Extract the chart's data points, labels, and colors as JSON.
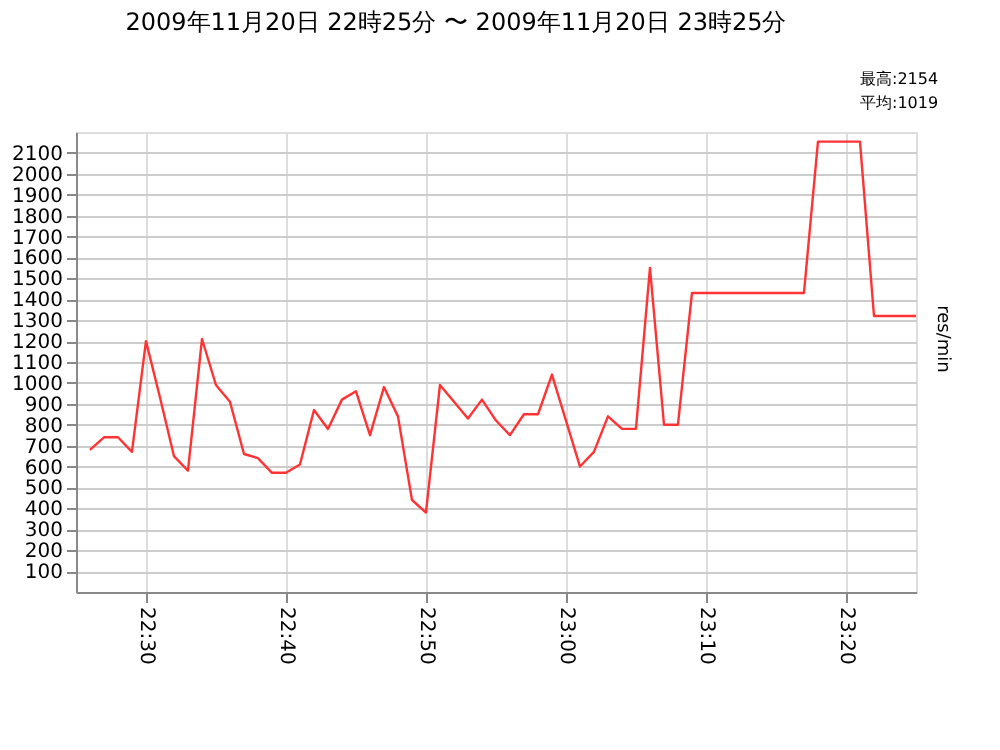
{
  "chart_data": {
    "type": "line",
    "title": "2009年11月20日 22時25分 〜 2009年11月20日 23時25分",
    "ylabel": "res/min",
    "annotations": [
      "最高:2154",
      "平均:1019"
    ],
    "x": [
      22.4333,
      22.45,
      22.4667,
      22.4833,
      22.5,
      22.5167,
      22.5333,
      22.55,
      22.5667,
      22.5833,
      22.6,
      22.6167,
      22.6333,
      22.65,
      22.6667,
      22.6833,
      22.7,
      22.7167,
      22.7333,
      22.75,
      22.7667,
      22.7833,
      22.8,
      22.8167,
      22.8333,
      22.85,
      22.8667,
      22.8833,
      22.9,
      22.9167,
      22.9333,
      22.95,
      22.9667,
      22.9833,
      23,
      23.0167,
      23.0333,
      23.05,
      23.0667,
      23.0833,
      23.1,
      23.1167,
      23.1333,
      23.15,
      23.2833,
      23.3,
      23.35,
      23.3667,
      23.4167
    ],
    "series": [
      {
        "color": "#ff3333",
        "values": [
          680,
          740,
          740,
          670,
          1200,
          930,
          650,
          580,
          1210,
          990,
          910,
          660,
          640,
          570,
          570,
          610,
          870,
          780,
          920,
          960,
          750,
          980,
          840,
          440,
          380,
          990,
          910,
          830,
          920,
          820,
          750,
          850,
          850,
          1040,
          820,
          600,
          670,
          840,
          780,
          780,
          1550,
          800,
          800,
          1430,
          1430,
          2154,
          2154,
          1320,
          1320
        ]
      }
    ],
    "xlim": [
      22.4167,
      23.4167
    ],
    "xticks": [
      {
        "value": 22.5,
        "label": "22:30"
      },
      {
        "value": 22.6667,
        "label": "22:40"
      },
      {
        "value": 22.8333,
        "label": "22:50"
      },
      {
        "value": 23,
        "label": "23:00"
      },
      {
        "value": 23.1667,
        "label": "23:10"
      },
      {
        "value": 23.3333,
        "label": "23:20"
      }
    ],
    "ylim": [
      0,
      2200
    ],
    "yticks": [
      100,
      200,
      300,
      400,
      500,
      600,
      700,
      800,
      900,
      1000,
      1100,
      1200,
      1300,
      1400,
      1500,
      1600,
      1700,
      1800,
      1900,
      2000,
      2100
    ],
    "grid": true,
    "marker": "none",
    "line_style": "solid"
  }
}
